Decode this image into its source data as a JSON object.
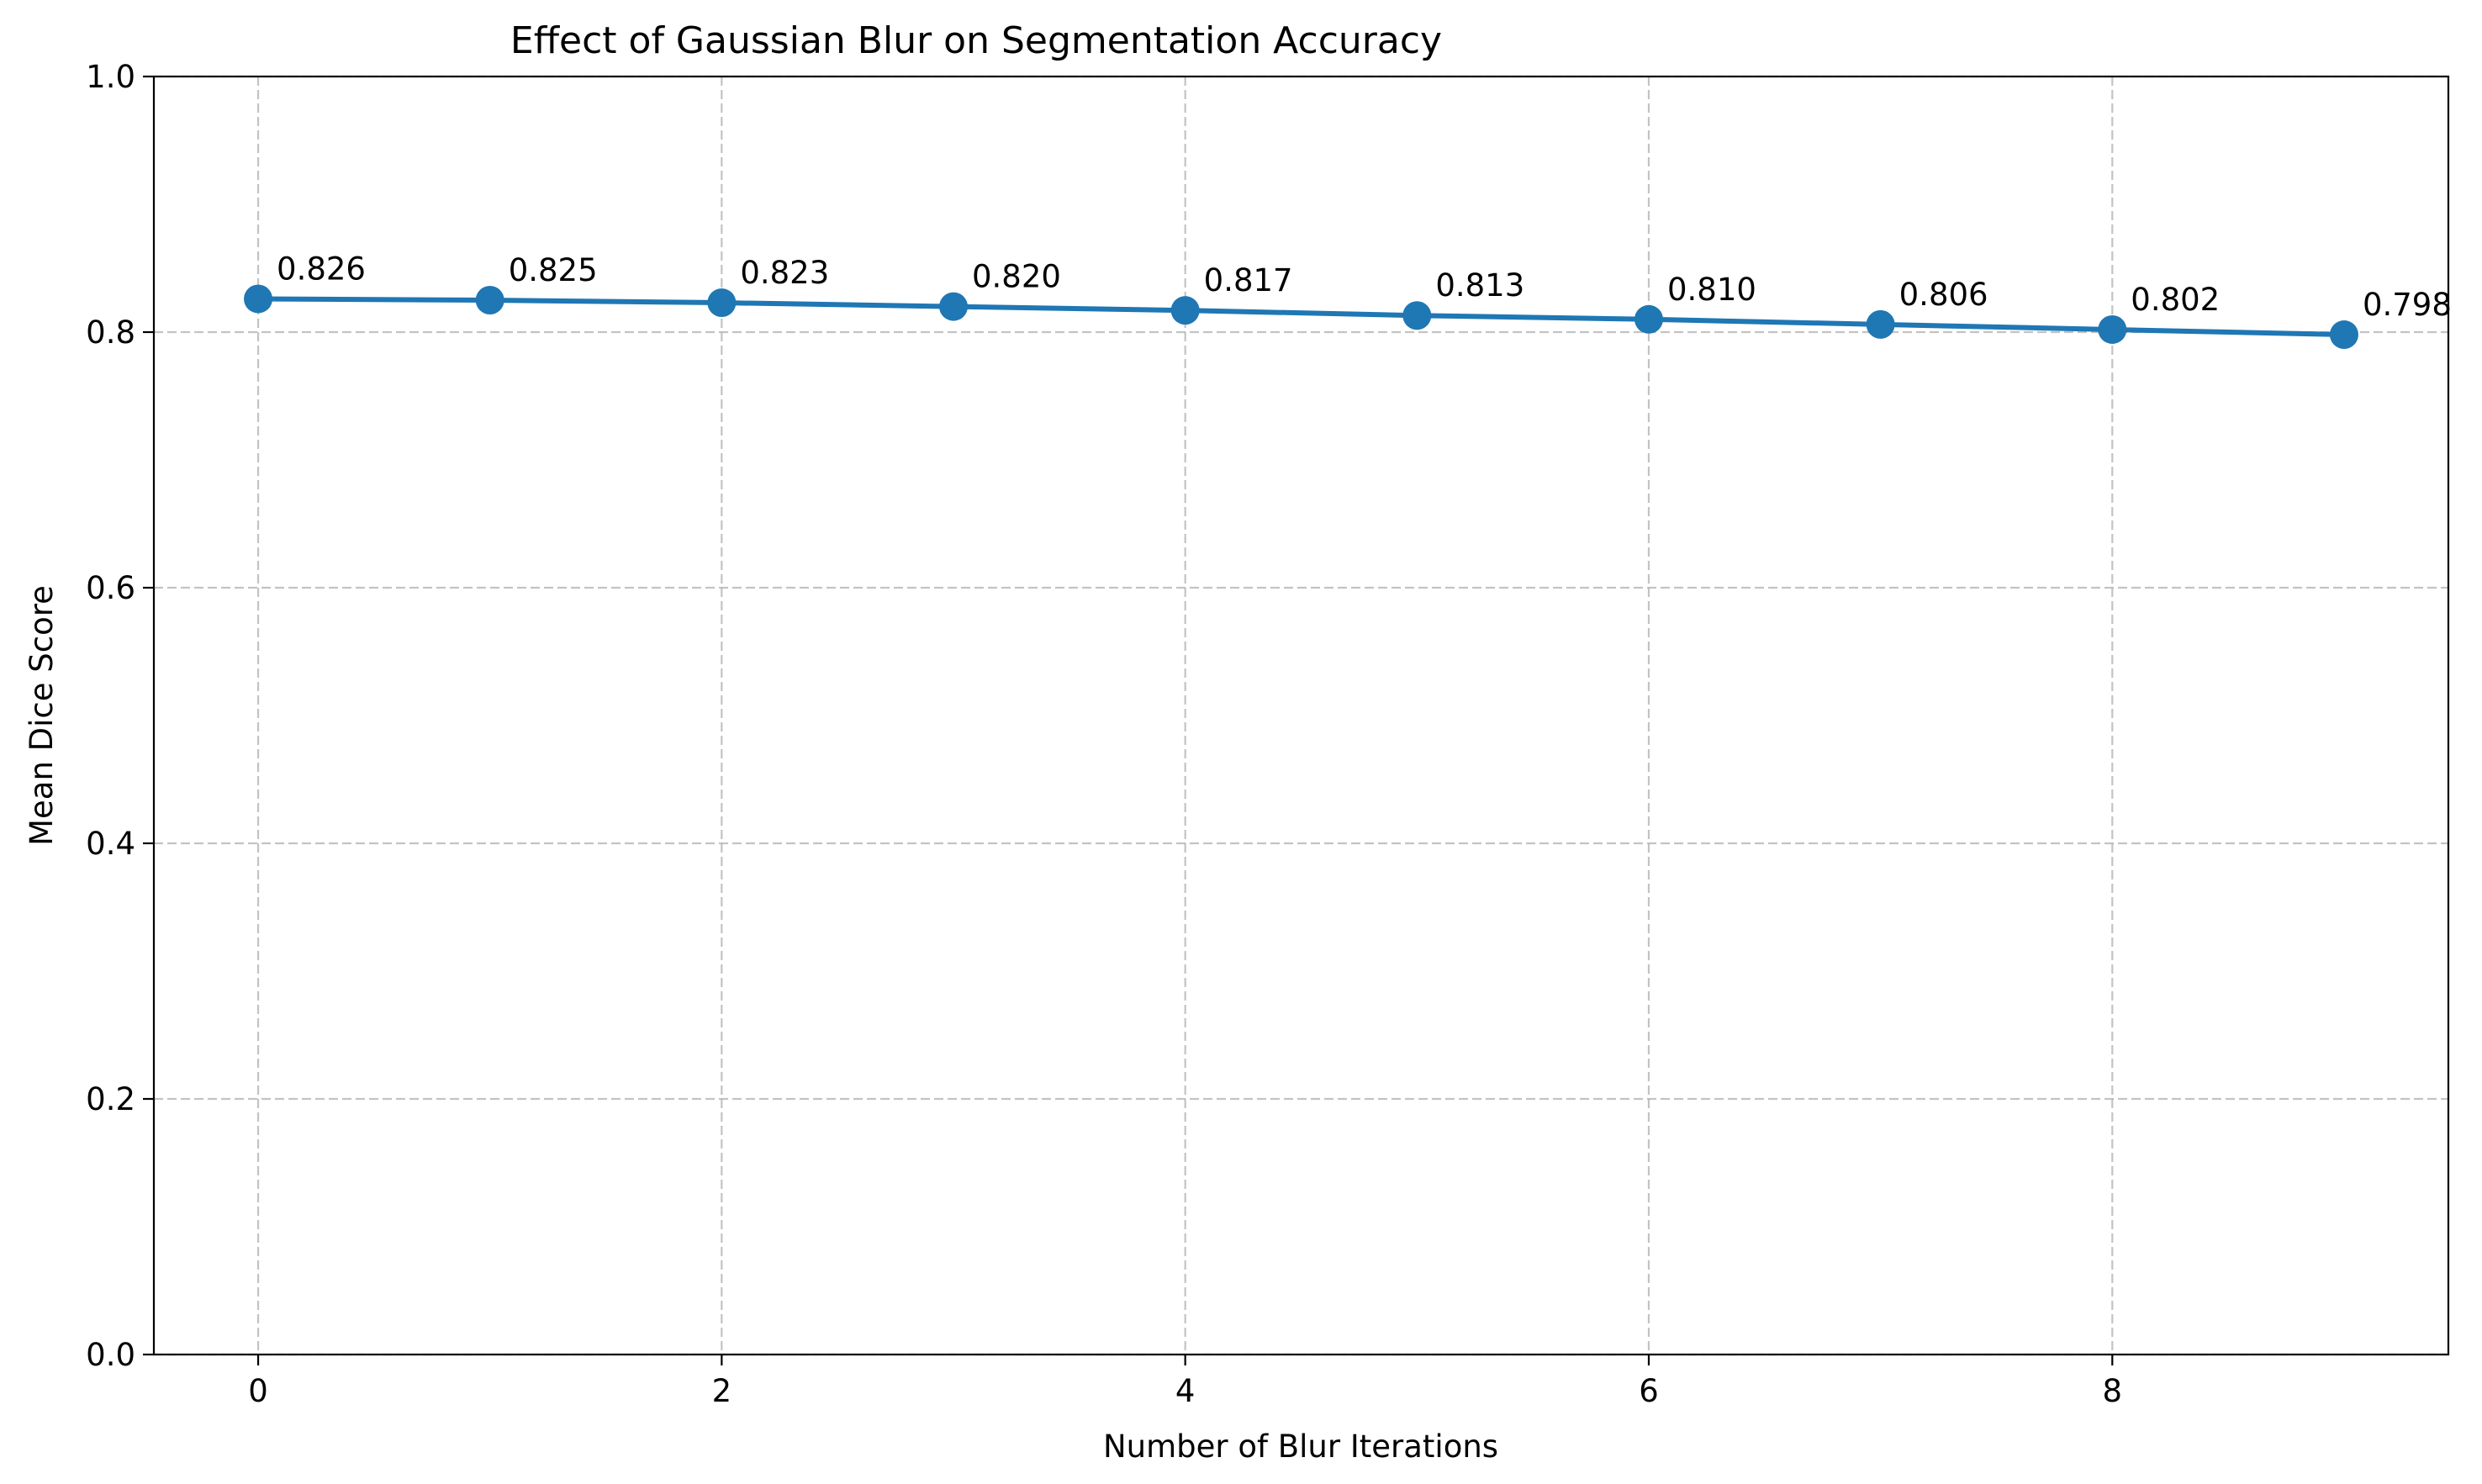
{
  "chart_data": {
    "type": "line",
    "title": "Effect of Gaussian Blur on Segmentation Accuracy",
    "xlabel": "Number of Blur Iterations",
    "ylabel": "Mean Dice Score",
    "x": [
      0,
      1,
      2,
      3,
      4,
      5,
      6,
      7,
      8,
      9
    ],
    "series": [
      {
        "values": [
          0.826,
          0.825,
          0.823,
          0.82,
          0.817,
          0.813,
          0.81,
          0.806,
          0.802,
          0.798
        ],
        "data_labels": [
          "0.826",
          "0.825",
          "0.823",
          "0.820",
          "0.817",
          "0.813",
          "0.810",
          "0.806",
          "0.802",
          "0.798"
        ],
        "color": "#1f77b4",
        "marker": "circle"
      }
    ],
    "xlim": [
      -0.45,
      9.45
    ],
    "ylim": [
      0.0,
      1.0
    ],
    "xticks": [
      0,
      2,
      4,
      6,
      8
    ],
    "xtick_labels": [
      "0",
      "2",
      "4",
      "6",
      "8"
    ],
    "yticks": [
      0.0,
      0.2,
      0.4,
      0.6,
      0.8,
      1.0
    ],
    "ytick_labels": [
      "0.0",
      "0.2",
      "0.4",
      "0.6",
      "0.8",
      "1.0"
    ],
    "grid": true,
    "legend": "none"
  }
}
